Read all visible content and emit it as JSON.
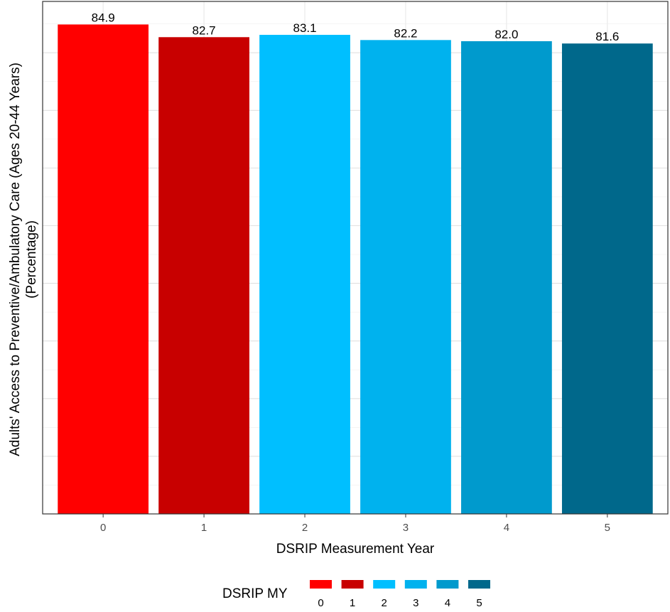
{
  "chart_data": {
    "type": "bar",
    "title": "",
    "xlabel": "DSRIP Measurement Year",
    "ylabel_lines": [
      "Adults' Access to Preventive/Ambulatory Care (Ages 20-44 Years)",
      "(Percentage)"
    ],
    "categories": [
      "0",
      "1",
      "2",
      "3",
      "4",
      "5"
    ],
    "values": [
      84.9,
      82.7,
      83.1,
      82.2,
      82.0,
      81.6
    ],
    "value_labels": [
      "84.9",
      "82.7",
      "83.1",
      "82.2",
      "82.0",
      "81.6"
    ],
    "colors": [
      "#ff0000",
      "#c80000",
      "#00bfff",
      "#00b2ee",
      "#009acd",
      "#00688b"
    ],
    "ylim": [
      0,
      88.9
    ],
    "y_ticks_shown": false,
    "grid": true,
    "legend": {
      "title": "DSRIP MY",
      "placement": "bottom",
      "labels": [
        "0",
        "1",
        "2",
        "3",
        "4",
        "5"
      ]
    }
  }
}
